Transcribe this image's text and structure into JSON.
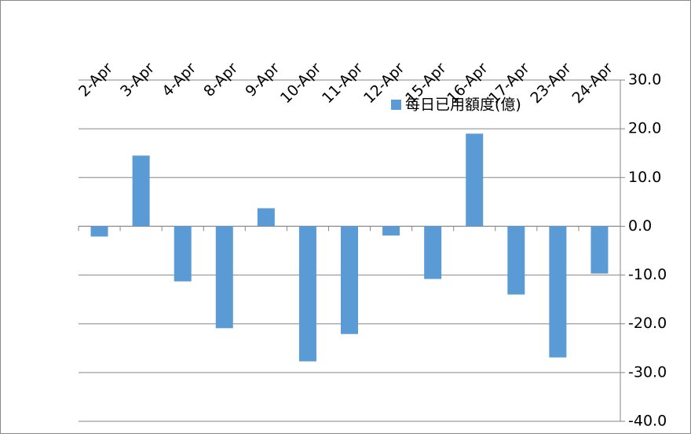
{
  "chart_data": {
    "type": "bar",
    "categories": [
      "2-Apr",
      "3-Apr",
      "4-Apr",
      "8-Apr",
      "9-Apr",
      "10-Apr",
      "11-Apr",
      "12-Apr",
      "15-Apr",
      "16-Apr",
      "17-Apr",
      "23-Apr",
      "24-Apr"
    ],
    "series": [
      {
        "name": "每日已用額度(億)",
        "color": "#5b9bd5",
        "values": [
          -2.1,
          14.5,
          -11.3,
          -20.9,
          3.7,
          -27.7,
          -22.1,
          -1.9,
          -10.8,
          19.0,
          -14.0,
          -26.9,
          -9.7
        ]
      }
    ],
    "ylim": [
      -40,
      30
    ],
    "yticks": [
      {
        "value": -40,
        "label": "-40.0"
      },
      {
        "value": -30,
        "label": "-30.0"
      },
      {
        "value": -20,
        "label": "-20.0"
      },
      {
        "value": -10,
        "label": "-10.0"
      },
      {
        "value": 0,
        "label": "0.0"
      },
      {
        "value": 10,
        "label": "10.0"
      },
      {
        "value": 20,
        "label": "20.0"
      },
      {
        "value": 30,
        "label": "30.0"
      }
    ],
    "grid": true,
    "y_axis_side": "right",
    "legend": "top-right"
  }
}
